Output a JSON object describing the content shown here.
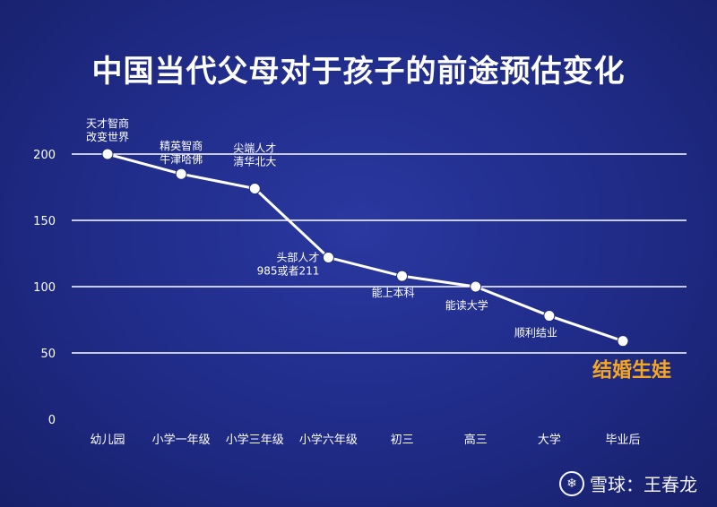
{
  "chart_data": {
    "type": "line",
    "title": "中国当代父母对于孩子的前途预估变化",
    "categories": [
      "幼儿园",
      "小学一年级",
      "小学三年级",
      "小学六年级",
      "初三",
      "高三",
      "大学",
      "毕业后"
    ],
    "values": [
      200,
      185,
      174,
      122,
      108,
      100,
      78,
      59
    ],
    "point_labels": [
      [
        "天才智商",
        "改变世界"
      ],
      [
        "精英智商",
        "牛津哈佛"
      ],
      [
        "尖端人才",
        "清华北大"
      ],
      [
        "头部人才",
        "985或者211"
      ],
      [
        "能上本科"
      ],
      [
        "能读大学"
      ],
      [
        "顺利结业"
      ],
      [
        "结婚生娃"
      ]
    ],
    "yticks": [
      0,
      50,
      100,
      150,
      200
    ],
    "ylim": [
      0,
      200
    ],
    "grid": true,
    "colors": {
      "line": "#ffffff",
      "highlight": "#f5a623",
      "label": "#ffffff",
      "grid": "#ffffff",
      "tick": "#ffffff"
    }
  },
  "watermark": {
    "logo_text": "❄",
    "text": "雪球：王春龙"
  }
}
